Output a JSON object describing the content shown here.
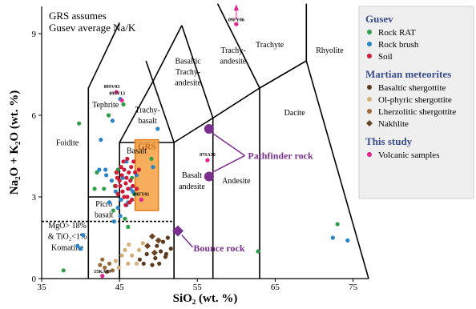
{
  "chart_data": {
    "type": "scatter",
    "title": "",
    "xlabel": "SiO₂ (wt. %)",
    "ylabel": "Na₂O + K₂O (wt. %)",
    "xlim": [
      35,
      77
    ],
    "ylim": [
      0,
      10
    ],
    "xticks": [
      35,
      45,
      55,
      65,
      75
    ],
    "yticks": [
      0,
      3,
      6,
      9
    ],
    "note": [
      "GRS assumes",
      "Gusev average Na/K"
    ],
    "field_labels": [
      {
        "text": "Foidite",
        "x": 38.3,
        "y": 4.9
      },
      {
        "text": "Tephrite",
        "x": 43.2,
        "y": 6.3
      },
      {
        "text": "Trachy-",
        "x": 48.6,
        "y": 6.1
      },
      {
        "text": "basalt",
        "x": 48.6,
        "y": 5.7
      },
      {
        "text": "Basaltic",
        "x": 53.8,
        "y": 7.9
      },
      {
        "text": "Trachy-",
        "x": 53.8,
        "y": 7.5
      },
      {
        "text": "andesite",
        "x": 53.8,
        "y": 7.1
      },
      {
        "text": "Trachy-",
        "x": 59.6,
        "y": 8.3
      },
      {
        "text": "andesite",
        "x": 59.6,
        "y": 7.9
      },
      {
        "text": "Trachyte",
        "x": 64.3,
        "y": 8.5
      },
      {
        "text": "Rhyolite",
        "x": 72.0,
        "y": 8.3
      },
      {
        "text": "Dacite",
        "x": 67.5,
        "y": 6.0
      },
      {
        "text": "Basalt",
        "x": 47.2,
        "y": 4.6
      },
      {
        "text": "Basalt",
        "x": 54.3,
        "y": 3.7
      },
      {
        "text": "andesite",
        "x": 54.3,
        "y": 3.3
      },
      {
        "text": "Andesite",
        "x": 60.0,
        "y": 3.5
      },
      {
        "text": "Picro",
        "x": 43.0,
        "y": 2.65
      },
      {
        "text": "basalt",
        "x": 43.0,
        "y": 2.25
      },
      {
        "text": "MgO> 18%",
        "x": 38.3,
        "y": 1.85
      },
      {
        "text": "& TiO₂<1%",
        "x": 38.3,
        "y": 1.45
      },
      {
        "text": "Komatiite",
        "x": 38.3,
        "y": 1.05
      }
    ],
    "grs_box": {
      "label": "GRS",
      "x": [
        47.0,
        50.0
      ],
      "y": [
        2.5,
        5.1
      ]
    },
    "annotations": [
      {
        "text": "Pathfinder rock",
        "x": 61.5,
        "y": 4.4
      },
      {
        "text": "Bounce rock",
        "x": 54.5,
        "y": 1.0
      }
    ],
    "point_labels": [
      {
        "text": "09FY06",
        "x": 60.0,
        "y": 9.45
      },
      {
        "text": "09SV03",
        "x": 44.0,
        "y": 7.0
      },
      {
        "text": "09SV13",
        "x": 44.7,
        "y": 6.75
      },
      {
        "text": "07SA30",
        "x": 56.3,
        "y": 4.5
      },
      {
        "text": "09FY01",
        "x": 47.8,
        "y": 3.05
      },
      {
        "text": "15KA09",
        "x": 42.8,
        "y": 0.2
      }
    ],
    "legend": {
      "placement": "right",
      "sections": [
        {
          "title": "Gusev",
          "items": [
            {
              "label": "Rock RAT",
              "color": "#2e9e4a",
              "marker": "circle"
            },
            {
              "label": "Rock brush",
              "color": "#2a84c8",
              "marker": "circle"
            },
            {
              "label": "Soil",
              "color": "#cc1c38",
              "marker": "circle"
            }
          ]
        },
        {
          "title": "Martian meteorites",
          "items": [
            {
              "label": "Basaltic shergottite",
              "color": "#5b3a1e",
              "marker": "circle"
            },
            {
              "label": "Ol-phyric shergottite",
              "color": "#d3b07a",
              "marker": "circle"
            },
            {
              "label": "Lherzolitic shergottite",
              "color": "#9a6a3a",
              "marker": "circle"
            },
            {
              "label": "Nakhlite",
              "color": "#6b4423",
              "marker": "diamond"
            }
          ]
        },
        {
          "title": "This study",
          "items": [
            {
              "label": "Volcanic samples",
              "color": "#e62290",
              "marker": "circle"
            }
          ]
        }
      ]
    },
    "series": [
      {
        "name": "Rock RAT",
        "color": "#2e9e4a",
        "marker": "circle",
        "points": [
          [
            39.8,
            5.7
          ],
          [
            37.8,
            0.3
          ],
          [
            42.1,
            3.9
          ],
          [
            43.6,
            6.0
          ],
          [
            45.5,
            6.4
          ],
          [
            44.4,
            3.4
          ],
          [
            46.6,
            3.7
          ],
          [
            41.8,
            3.3
          ],
          [
            44.2,
            2.5
          ],
          [
            46.1,
            1.9
          ],
          [
            46.9,
            3.1
          ],
          [
            44.8,
            4.0
          ],
          [
            62.8,
            1.0
          ],
          [
            73.0,
            2.0
          ],
          [
            49.1,
            4.4
          ],
          [
            45.7,
            2.2
          ],
          [
            43.0,
            3.3
          ]
        ]
      },
      {
        "name": "Rock brush",
        "color": "#2a84c8",
        "marker": "circle",
        "points": [
          [
            40.3,
            1.6
          ],
          [
            39.6,
            1.2
          ],
          [
            40.0,
            1.1
          ],
          [
            42.6,
            5.1
          ],
          [
            44.1,
            5.8
          ],
          [
            45.1,
            6.6
          ],
          [
            49.9,
            5.5
          ],
          [
            42.4,
            4.0
          ],
          [
            43.3,
            3.8
          ],
          [
            44.0,
            3.6
          ],
          [
            44.5,
            3.2
          ],
          [
            45.2,
            2.9
          ],
          [
            45.9,
            2.7
          ],
          [
            45.4,
            3.7
          ],
          [
            46.4,
            3.3
          ],
          [
            44.8,
            2.6
          ],
          [
            43.7,
            2.8
          ],
          [
            44.3,
            2.1
          ],
          [
            45.1,
            2.3
          ],
          [
            46.1,
            2.8
          ],
          [
            46.7,
            3.2
          ],
          [
            43.2,
            4.0
          ],
          [
            47.2,
            3.8
          ],
          [
            72.4,
            1.5
          ],
          [
            74.3,
            1.4
          ],
          [
            49.3,
            4.1
          ],
          [
            45.9,
            4.3
          ]
        ]
      },
      {
        "name": "Soil",
        "color": "#cc1c38",
        "marker": "circle",
        "points": [
          [
            44.6,
            3.9
          ],
          [
            45.0,
            3.6
          ],
          [
            45.3,
            3.8
          ],
          [
            45.6,
            4.0
          ],
          [
            45.9,
            3.7
          ],
          [
            46.2,
            3.9
          ],
          [
            46.5,
            4.1
          ],
          [
            45.1,
            3.4
          ],
          [
            45.4,
            3.2
          ],
          [
            45.8,
            3.5
          ],
          [
            46.1,
            3.3
          ],
          [
            46.4,
            3.6
          ],
          [
            46.7,
            3.4
          ],
          [
            45.6,
            3.0
          ],
          [
            46.0,
            3.0
          ],
          [
            46.3,
            2.8
          ],
          [
            44.8,
            3.1
          ],
          [
            47.0,
            3.9
          ],
          [
            46.8,
            4.3
          ],
          [
            45.5,
            4.3
          ],
          [
            44.5,
            3.4
          ],
          [
            47.2,
            3.3
          ],
          [
            46.6,
            2.9
          ],
          [
            45.2,
            4.1
          ],
          [
            46.0,
            4.4
          ],
          [
            47.5,
            4.0
          ],
          [
            44.7,
            3.7
          ],
          [
            45.8,
            2.7
          ]
        ]
      },
      {
        "name": "Basaltic shergottite",
        "color": "#5b3a1e",
        "marker": "circle",
        "points": [
          [
            49.8,
            1.2
          ],
          [
            50.6,
            1.35
          ],
          [
            51.2,
            1.5
          ],
          [
            50.3,
            1.0
          ],
          [
            51.6,
            1.1
          ],
          [
            49.6,
            0.75
          ],
          [
            48.5,
            0.9
          ],
          [
            50.9,
            0.8
          ],
          [
            48.1,
            0.55
          ],
          [
            47.6,
            0.7
          ],
          [
            49.2,
            0.5
          ],
          [
            50.1,
            0.55
          ],
          [
            51.0,
            0.9
          ]
        ]
      },
      {
        "name": "Ol-phyric shergottite",
        "color": "#d3b07a",
        "marker": "circle",
        "points": [
          [
            44.5,
            0.65
          ],
          [
            45.3,
            0.85
          ],
          [
            46.1,
            0.55
          ],
          [
            45.7,
            1.05
          ],
          [
            46.6,
            0.85
          ],
          [
            47.2,
            0.55
          ],
          [
            44.9,
            0.4
          ],
          [
            46.2,
            1.25
          ],
          [
            47.5,
            1.05
          ],
          [
            48.0,
            1.3
          ]
        ]
      },
      {
        "name": "Lherzolitic shergottite",
        "color": "#9a6a3a",
        "marker": "circle",
        "points": [
          [
            42.5,
            0.5
          ],
          [
            43.1,
            0.4
          ],
          [
            43.7,
            0.55
          ],
          [
            43.4,
            0.25
          ],
          [
            44.1,
            0.3
          ],
          [
            42.8,
            0.7
          ]
        ]
      },
      {
        "name": "Nakhlite",
        "color": "#6b4423",
        "marker": "diamond",
        "points": [
          [
            49.2,
            1.55
          ],
          [
            50.0,
            1.4
          ],
          [
            48.6,
            1.2
          ],
          [
            49.5,
            0.95
          ]
        ]
      },
      {
        "name": "Volcanic samples",
        "color": "#e62290",
        "marker": "circle",
        "points": [
          [
            60.0,
            9.35
          ],
          [
            44.6,
            6.85
          ],
          [
            45.3,
            6.55
          ],
          [
            56.3,
            4.35
          ],
          [
            47.8,
            2.9
          ],
          [
            42.8,
            0.1
          ]
        ]
      }
    ],
    "highlight_points": [
      {
        "label": "Pathfinder rock",
        "color": "#7b2f8e",
        "marker": "circle",
        "x": 56.5,
        "y": 5.5
      },
      {
        "label": "Pathfinder rock",
        "color": "#7b2f8e",
        "marker": "circle",
        "x": 56.5,
        "y": 3.75
      },
      {
        "label": "Bounce rock",
        "color": "#7b2f8e",
        "marker": "diamond",
        "x": 52.5,
        "y": 1.75
      }
    ]
  }
}
